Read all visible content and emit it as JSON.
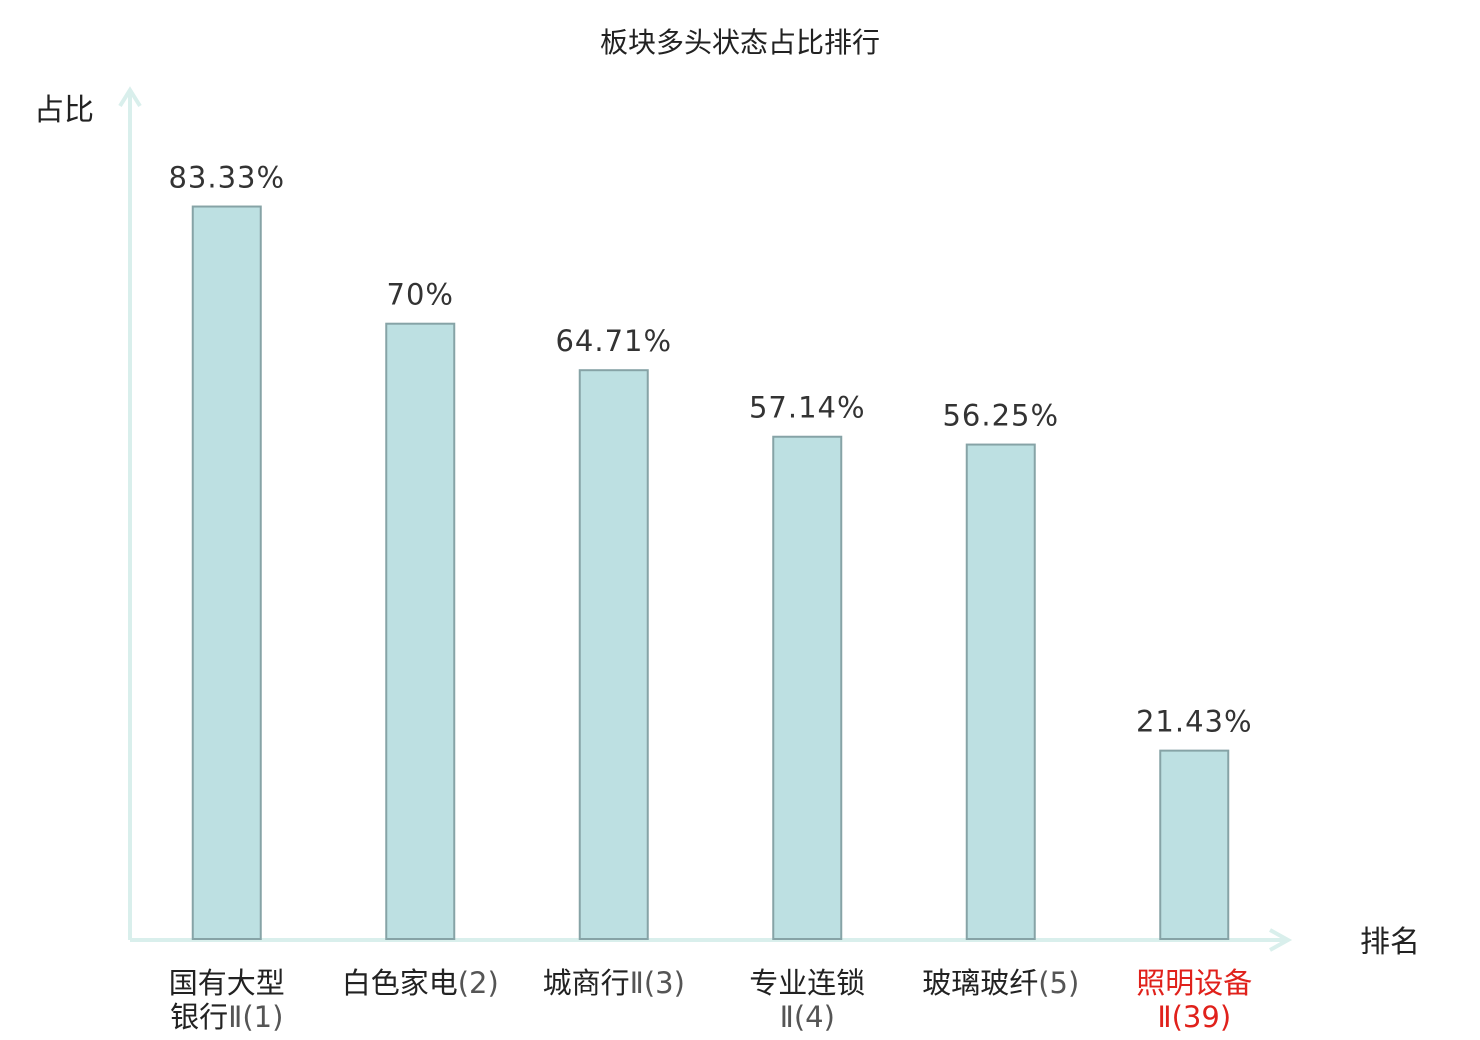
{
  "chart_data": {
    "type": "bar",
    "title": "板块多头状态占比排行",
    "ylabel": "占比",
    "xlabel": "排名",
    "ylim": [
      0,
      100
    ],
    "grid": false,
    "categories": [
      {
        "lines": [
          {
            "name": "国有大型",
            "rank": ""
          },
          {
            "name": "银行",
            "rank": "Ⅱ(1)"
          }
        ],
        "highlight": false
      },
      {
        "lines": [
          {
            "name": "白色家电",
            "rank": "(2)"
          }
        ],
        "highlight": false
      },
      {
        "lines": [
          {
            "name": "城商行",
            "rank": "Ⅱ(3)"
          }
        ],
        "highlight": false
      },
      {
        "lines": [
          {
            "name": "专业连锁",
            "rank": ""
          },
          {
            "name": "",
            "rank": "Ⅱ(4)"
          }
        ],
        "highlight": false
      },
      {
        "lines": [
          {
            "name": "玻璃玻纤",
            "rank": "(5)"
          }
        ],
        "highlight": false
      },
      {
        "lines": [
          {
            "name": "照明设备",
            "rank": ""
          },
          {
            "name": "",
            "rank": "Ⅱ(39)"
          }
        ],
        "highlight": true
      }
    ],
    "values": [
      83.33,
      70,
      64.71,
      57.14,
      56.25,
      21.43
    ],
    "value_labels": [
      "83.33%",
      "70%",
      "64.71%",
      "57.14%",
      "56.25%",
      "21.43%"
    ]
  },
  "colors": {
    "bar_fill": "#bde0e2",
    "bar_stroke": "#86a3a6",
    "axis": "#d9efec",
    "text": "#222222",
    "rank_text": "#555555",
    "highlight": "#e0211b"
  }
}
